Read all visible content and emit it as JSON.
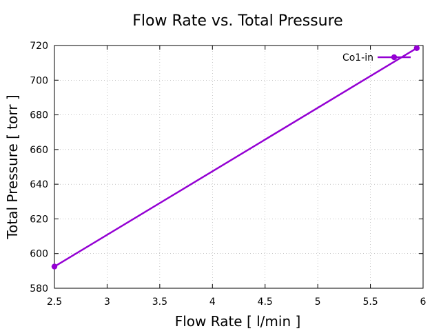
{
  "chart_data": {
    "type": "line",
    "title": "Flow Rate vs. Total Pressure",
    "xlabel": "Flow Rate [ l/min ]",
    "ylabel": "Total Pressure [ torr ]",
    "xlim": [
      2.5,
      6
    ],
    "ylim": [
      580,
      720
    ],
    "x_ticks": [
      2.5,
      3,
      3.5,
      4,
      4.5,
      5,
      5.5,
      6
    ],
    "x_tick_labels": [
      "2.5",
      "3",
      "3.5",
      "4",
      "4.5",
      "5",
      "5.5",
      "6"
    ],
    "y_ticks": [
      580,
      600,
      620,
      640,
      660,
      680,
      700,
      720
    ],
    "y_tick_labels": [
      "580",
      "600",
      "620",
      "640",
      "660",
      "680",
      "700",
      "720"
    ],
    "grid": true,
    "legend_position": "top-right",
    "series": [
      {
        "name": "Co1-in",
        "color": "#9400d3",
        "x": [
          2.5,
          5.94
        ],
        "y": [
          592.5,
          718.5
        ]
      }
    ]
  }
}
